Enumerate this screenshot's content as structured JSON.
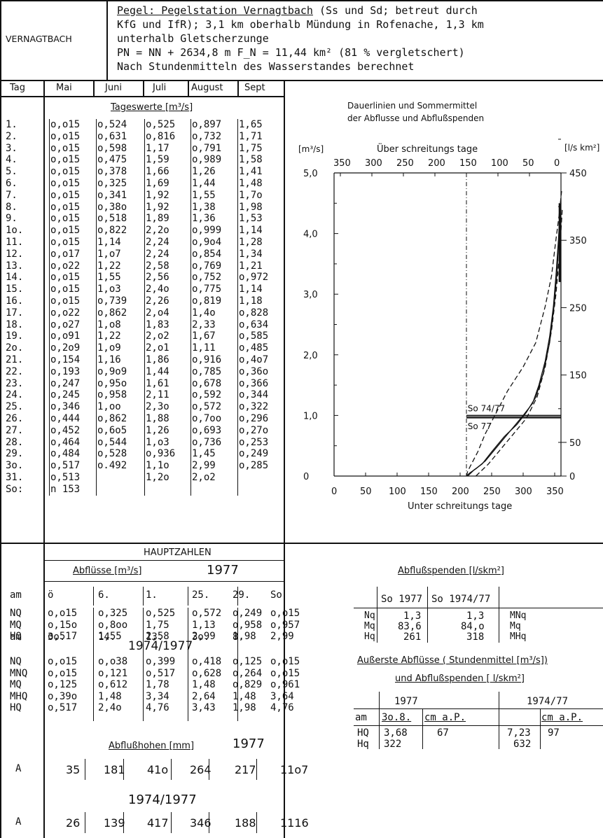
{
  "station": "VERNAGTBACH",
  "header": {
    "line1_prefix": "Pegel: Pegelstation Vernagtbach",
    "line1_suffix": " (Ss und Sd; betreut durch",
    "line2": "KfG und IfR); 3,1 km oberhalb Mündung in Rofenache, 1,3 km",
    "line3": "unterhalb Gletscherzunge",
    "line4": "PN = NN + 2634,8 m  F_N = 11,44 km² (81 % vergletschert)",
    "line5": "Nach Stundenmitteln des Wasserstandes berechnet"
  },
  "table": {
    "columns": [
      "Tag",
      "Mai",
      "Juni",
      "Juli",
      "August",
      "Sept"
    ],
    "subtitle": "Tageswerte [m³/s]",
    "days": [
      "1.",
      "2.",
      "3.",
      "4.",
      "5.",
      "6.",
      "7.",
      "8.",
      "9.",
      "1o.",
      "11.",
      "12.",
      "13.",
      "14.",
      "15.",
      "16.",
      "17.",
      "18.",
      "19.",
      "2o.",
      "21.",
      "22.",
      "23.",
      "24.",
      "25.",
      "26.",
      "27.",
      "28.",
      "29.",
      "3o.",
      "31.",
      "So:"
    ],
    "mai": [
      "o,o15",
      "o,o15",
      "o,o15",
      "o,o15",
      "o,o15",
      "o,o15",
      "o,o15",
      "o,o15",
      "o,o15",
      "o,o15",
      "o,o15",
      "o,o17",
      "o,o22",
      "o,o15",
      "o,o15",
      "o,o15",
      "o,o22",
      "o,o27",
      "o,o91",
      "o,2o9",
      "o,154",
      "o,193",
      "o,247",
      "o,245",
      "o,346",
      "o,444",
      "o,452",
      "o,464",
      "o,484",
      "o,517",
      "o,513",
      "n 153"
    ],
    "juni": [
      "o,524",
      "o,631",
      "o,598",
      "o,475",
      "o,378",
      "o,325",
      "o,341",
      "o,38o",
      "o,518",
      "o,822",
      "1,14",
      "1,o7",
      "1,22",
      "1,55",
      "1,o3",
      "o,739",
      "o,862",
      "1,o8",
      "1,22",
      "1,o9",
      "1,16",
      "o,9o9",
      "o,95o",
      "o,958",
      "1,oo",
      "o,862",
      "o,6o5",
      "o,544",
      "o,528",
      "o.492",
      "",
      ""
    ],
    "juli": [
      "o,525",
      "o,816",
      "1,17",
      "1,59",
      "1,66",
      "1,69",
      "1,92",
      "1,92",
      "1,89",
      "2,2o",
      "2,24",
      "2,24",
      "2,58",
      "2,56",
      "2,4o",
      "2,26",
      "2,o4",
      "1,83",
      "2,o2",
      "2,o1",
      "1,86",
      "1,44",
      "1,61",
      "2,11",
      "2,3o",
      "1,88",
      "1,26",
      "1,o3",
      "o,936",
      "1,1o",
      "1,2o",
      ""
    ],
    "august": [
      "o,897",
      "o,732",
      "o,791",
      "o,989",
      "1,26",
      "1,44",
      "1,55",
      "1,38",
      "1,36",
      "o,999",
      "o,9o4",
      "o,854",
      "o,769",
      "o,752",
      "o,775",
      "o,819",
      "1,4o",
      "2,33",
      "1,67",
      "1,11",
      "o,916",
      "o,785",
      "o,678",
      "o,592",
      "o,572",
      "o,7oo",
      "o,693",
      "o,736",
      "1,45",
      "2,99",
      "2,o2",
      ""
    ],
    "sept": [
      "1,65",
      "1,71",
      "1,75",
      "1,58",
      "1,41",
      "1,48",
      "1,7o",
      "1,98",
      "1,53",
      "1,14",
      "1,28",
      "1,34",
      "1,21",
      "o,972",
      "1,14",
      "1,18",
      "o,828",
      "o,634",
      "o,585",
      "o,485",
      "o,4o7",
      "o,36o",
      "o,366",
      "o,344",
      "o,322",
      "o,296",
      "o,27o",
      "o,253",
      "o,249",
      "o,285",
      "",
      ""
    ]
  },
  "chart": {
    "title1": "Dauerlinien und Sommermittel",
    "title2": "der Abflusse und Abflußspenden",
    "left_unit": "[m³/s]",
    "right_unit": "[l/s km²]",
    "top_axis_label": "Über schreitungs tage",
    "bottom_axis_label": "Unter schreitungs tage",
    "top_ticks": [
      "350",
      "300",
      "250",
      "200",
      "150",
      "100",
      "50",
      "0"
    ],
    "bottom_ticks": [
      "0",
      "50",
      "100",
      "150",
      "200",
      "250",
      "300",
      "350"
    ],
    "left_ticks": [
      "5,0",
      "4,0",
      "3,0",
      "2,0",
      "1,0",
      "0"
    ],
    "right_ticks": [
      "450",
      "350",
      "250",
      "150",
      "50",
      "0"
    ],
    "label_so7477": "So 74/77",
    "label_so77": "So 77"
  },
  "chart_data": {
    "type": "line",
    "title": "Dauerlinien und Sommermittel der Abflusse und Abflußspenden",
    "xlabel": "Unter schreitungs tage",
    "x2label": "Über schreitungs tage",
    "ylabel": "[m³/s]",
    "y2label": "[l/s km²]",
    "xlim": [
      0,
      365
    ],
    "ylim": [
      0,
      5.0
    ],
    "series": [
      {
        "name": "",
        "style": "solid",
        "x": [
          210,
          215,
          225,
          240,
          260,
          280,
          300,
          315,
          325,
          335,
          342,
          348,
          352,
          356,
          358,
          360
        ],
        "y": [
          0,
          0.05,
          0.12,
          0.25,
          0.5,
          0.75,
          1.0,
          1.2,
          1.5,
          1.9,
          2.3,
          2.8,
          3.3,
          3.9,
          4.3,
          4.5
        ]
      },
      {
        "name": "",
        "style": "solid",
        "x": [
          212,
          222,
          235,
          250,
          270,
          290,
          305,
          320,
          332,
          342,
          349,
          354,
          357,
          360
        ],
        "y": [
          0,
          0.1,
          0.2,
          0.4,
          0.65,
          0.85,
          1.05,
          1.3,
          1.7,
          2.2,
          2.8,
          3.4,
          4.0,
          4.4
        ]
      },
      {
        "name": "",
        "style": "dashed",
        "x": [
          210,
          212,
          218,
          228,
          240,
          255,
          275,
          300,
          320,
          335,
          345,
          352,
          357,
          361
        ],
        "y": [
          0,
          0.08,
          0.2,
          0.4,
          0.7,
          1.0,
          1.4,
          1.8,
          2.2,
          2.8,
          3.3,
          3.9,
          4.3,
          4.7
        ]
      },
      {
        "name": "",
        "style": "dashed",
        "x": [
          225,
          245,
          265,
          285,
          305,
          322,
          335,
          345,
          352,
          358,
          362
        ],
        "y": [
          0,
          0.2,
          0.45,
          0.7,
          0.95,
          1.3,
          1.8,
          2.4,
          3.0,
          3.7,
          4.4
        ]
      }
    ],
    "hlines": [
      {
        "label": "So 74/77",
        "y": 1.0
      },
      {
        "label": "So 77",
        "y": 0.96
      }
    ]
  },
  "hauptzahlen": {
    "title": "HAUPTZAHLEN",
    "abfluesse_label": "Abflüsse [m³/s]",
    "year": "1977",
    "am_label": "am",
    "am_1977": [
      "ö",
      "6.",
      "1.",
      "25.",
      "29.",
      "So"
    ],
    "rows_1977": [
      {
        "label": "NQ",
        "values": [
          "o,o15",
          "o,325",
          "o,525",
          "o,572",
          "o,249",
          "o,o15"
        ]
      },
      {
        "label": "MQ",
        "values": [
          "o,15o",
          "o,8oo",
          "1,75",
          "1,13",
          "o,958",
          "o,957"
        ]
      },
      {
        "label": "HQ",
        "values": [
          "o,517",
          "1,55",
          "2,58",
          "2,99",
          "1,98",
          "2,99"
        ]
      }
    ],
    "am_7477": [
      "3o.",
      "14.",
      "13.",
      "3o.",
      "8.",
      ""
    ],
    "period": "1974/1977",
    "rows_7477": [
      {
        "label": "NQ",
        "values": [
          "o,o15",
          "o,o38",
          "o,399",
          "o,418",
          "o,125",
          "o,o15"
        ]
      },
      {
        "label": "MNQ",
        "values": [
          "o,o15",
          "o,121",
          "o,517",
          "o,628",
          "o,264",
          "o,o15"
        ]
      },
      {
        "label": "MQ",
        "values": [
          "o,125",
          "o,612",
          "1,78",
          "1,48",
          "o,829",
          "o,961"
        ]
      },
      {
        "label": "MHQ",
        "values": [
          "o,39o",
          "1,48",
          "3,34",
          "2,64",
          "1,48",
          "3,64"
        ]
      },
      {
        "label": "HQ",
        "values": [
          "o,517",
          "2,4o",
          "4,76",
          "3,43",
          "1,98",
          "4,76"
        ]
      }
    ],
    "abflusshoehen_label": "Abflußhohen [mm]",
    "hoehen_year": "1977",
    "A_label": "A",
    "A_1977": [
      "35",
      "181",
      "41o",
      "264",
      "217",
      "11o7"
    ],
    "hoehen_period": "1974/1977",
    "A_7477": [
      "26",
      "139",
      "417",
      "346",
      "188",
      "1116"
    ]
  },
  "spenden": {
    "title": "Abflußspenden [l/skm²]",
    "col1": "So 1977",
    "col2": "So 1974/77",
    "rows": [
      {
        "label": "Nq",
        "v1": "1,3",
        "v2": "1,3",
        "right": "MNq"
      },
      {
        "label": "Mq",
        "v1": "83,6",
        "v2": "84,o",
        "right": "Mq"
      },
      {
        "label": "Hq",
        "v1": "261",
        "v2": "318",
        "right": "MHq"
      }
    ]
  },
  "extreme": {
    "title1": "Außerste Abflüsse ( Stundenmittel [m³/s])",
    "title2": "und Abflußspenden [ l/skm²]",
    "year1": "1977",
    "year2": "1974/77",
    "am_label": "am",
    "date": "3o.8.",
    "cm1": "cm a.P.",
    "cm2": "cm a.P.",
    "rows": [
      {
        "label": "HQ",
        "v1": "3,68",
        "cm1": "67",
        "v2": "7,23",
        "cm2": "97"
      },
      {
        "label": "Hq",
        "v1": "322",
        "cm1": "",
        "v2": "632",
        "cm2": ""
      }
    ]
  }
}
